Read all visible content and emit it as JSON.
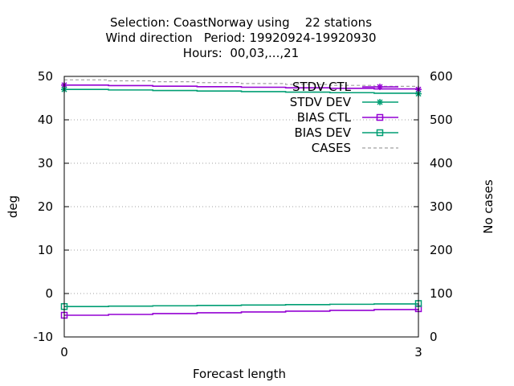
{
  "chart_data": {
    "type": "line",
    "title_lines": [
      "Selection: CoastNorway using    22 stations",
      "Wind direction   Period: 19920924-19920930",
      "Hours:  00,03,...,21"
    ],
    "xlabel": "Forecast length",
    "ylabel": "deg",
    "y2label": "No cases",
    "x": [
      0,
      3
    ],
    "xlim": [
      0,
      3
    ],
    "xticks": [
      "0",
      "3"
    ],
    "ylim": [
      -10,
      50
    ],
    "yticks": [
      "-10",
      "0",
      "10",
      "20",
      "30",
      "40",
      "50"
    ],
    "y2lim": [
      0,
      600
    ],
    "y2ticks": [
      "0",
      "100",
      "200",
      "300",
      "400",
      "500",
      "600"
    ],
    "grid": "horizontal dotted",
    "legend_position": "top-right",
    "series": [
      {
        "name": "STDV CTL",
        "axis": "left",
        "values": [
          48,
          47
        ],
        "color": "#9400d3",
        "marker": "star",
        "style": "solid"
      },
      {
        "name": "STDV DEV",
        "axis": "left",
        "values": [
          47,
          46
        ],
        "color": "#009e73",
        "marker": "star",
        "style": "solid"
      },
      {
        "name": "BIAS CTL",
        "axis": "left",
        "values": [
          -5,
          -3.5
        ],
        "color": "#9400d3",
        "marker": "square",
        "style": "solid"
      },
      {
        "name": "BIAS DEV",
        "axis": "left",
        "values": [
          -3,
          -2.3
        ],
        "color": "#009e73",
        "marker": "square",
        "style": "solid"
      },
      {
        "name": "CASES",
        "axis": "right",
        "values": [
          592,
          575
        ],
        "color": "#a0a0a0",
        "marker": "none",
        "style": "dashed"
      }
    ]
  }
}
